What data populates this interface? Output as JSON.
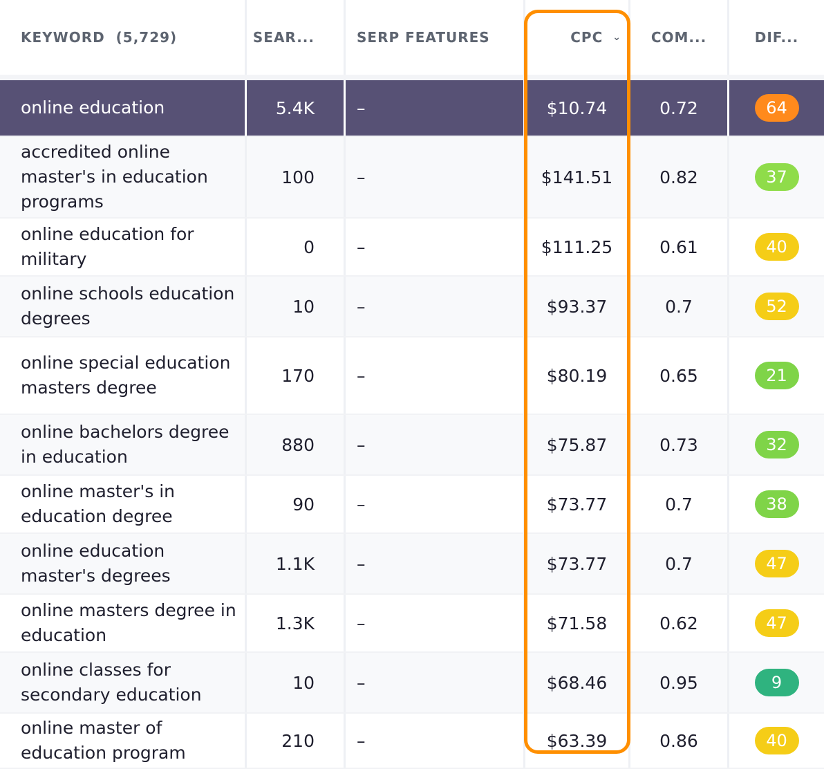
{
  "header": {
    "keyword": "KEYWORD  (5,729)",
    "search": "SEAR...",
    "serp": "SERP FEATURES",
    "cpc": "CPC",
    "competition": "COM...",
    "difficulty": "DIF...",
    "sort_icon": "chevron-down-icon"
  },
  "highlight_color": "#ff8f00",
  "selected_row_color": "#575175",
  "rows": [
    {
      "keyword": "online education",
      "volume": "5.4K",
      "serp": "–",
      "cpc": "$10.74",
      "competition": "0.72",
      "difficulty": "64",
      "color": "#ff8a1c"
    },
    {
      "keyword": "accredited online master's in education programs",
      "volume": "100",
      "serp": "–",
      "cpc": "$141.51",
      "competition": "0.82",
      "difficulty": "37",
      "color": "#8fdc4a"
    },
    {
      "keyword": "online education for military",
      "volume": "0",
      "serp": "–",
      "cpc": "$111.25",
      "competition": "0.61",
      "difficulty": "40",
      "color": "#f5cd17"
    },
    {
      "keyword": "online schools education degrees",
      "volume": "10",
      "serp": "–",
      "cpc": "$93.37",
      "competition": "0.7",
      "difficulty": "52",
      "color": "#f5cd17"
    },
    {
      "keyword": "online special education masters degree",
      "volume": "170",
      "serp": "–",
      "cpc": "$80.19",
      "competition": "0.65",
      "difficulty": "21",
      "color": "#7fd448"
    },
    {
      "keyword": "online bachelors degree in education",
      "volume": "880",
      "serp": "–",
      "cpc": "$75.87",
      "competition": "0.73",
      "difficulty": "32",
      "color": "#7fd448"
    },
    {
      "keyword": "online master's in education degree",
      "volume": "90",
      "serp": "–",
      "cpc": "$73.77",
      "competition": "0.7",
      "difficulty": "38",
      "color": "#7fd448"
    },
    {
      "keyword": "online education master's degrees",
      "volume": "1.1K",
      "serp": "–",
      "cpc": "$73.77",
      "competition": "0.7",
      "difficulty": "47",
      "color": "#f5cd17"
    },
    {
      "keyword": "online masters degree in education",
      "volume": "1.3K",
      "serp": "–",
      "cpc": "$71.58",
      "competition": "0.62",
      "difficulty": "47",
      "color": "#f5cd17"
    },
    {
      "keyword": "online classes for secondary education",
      "volume": "10",
      "serp": "–",
      "cpc": "$68.46",
      "competition": "0.95",
      "difficulty": "9",
      "color": "#2fb37f"
    },
    {
      "keyword": "online master of education program",
      "volume": "210",
      "serp": "–",
      "cpc": "$63.39",
      "competition": "0.86",
      "difficulty": "40",
      "color": "#f5cd17"
    }
  ]
}
